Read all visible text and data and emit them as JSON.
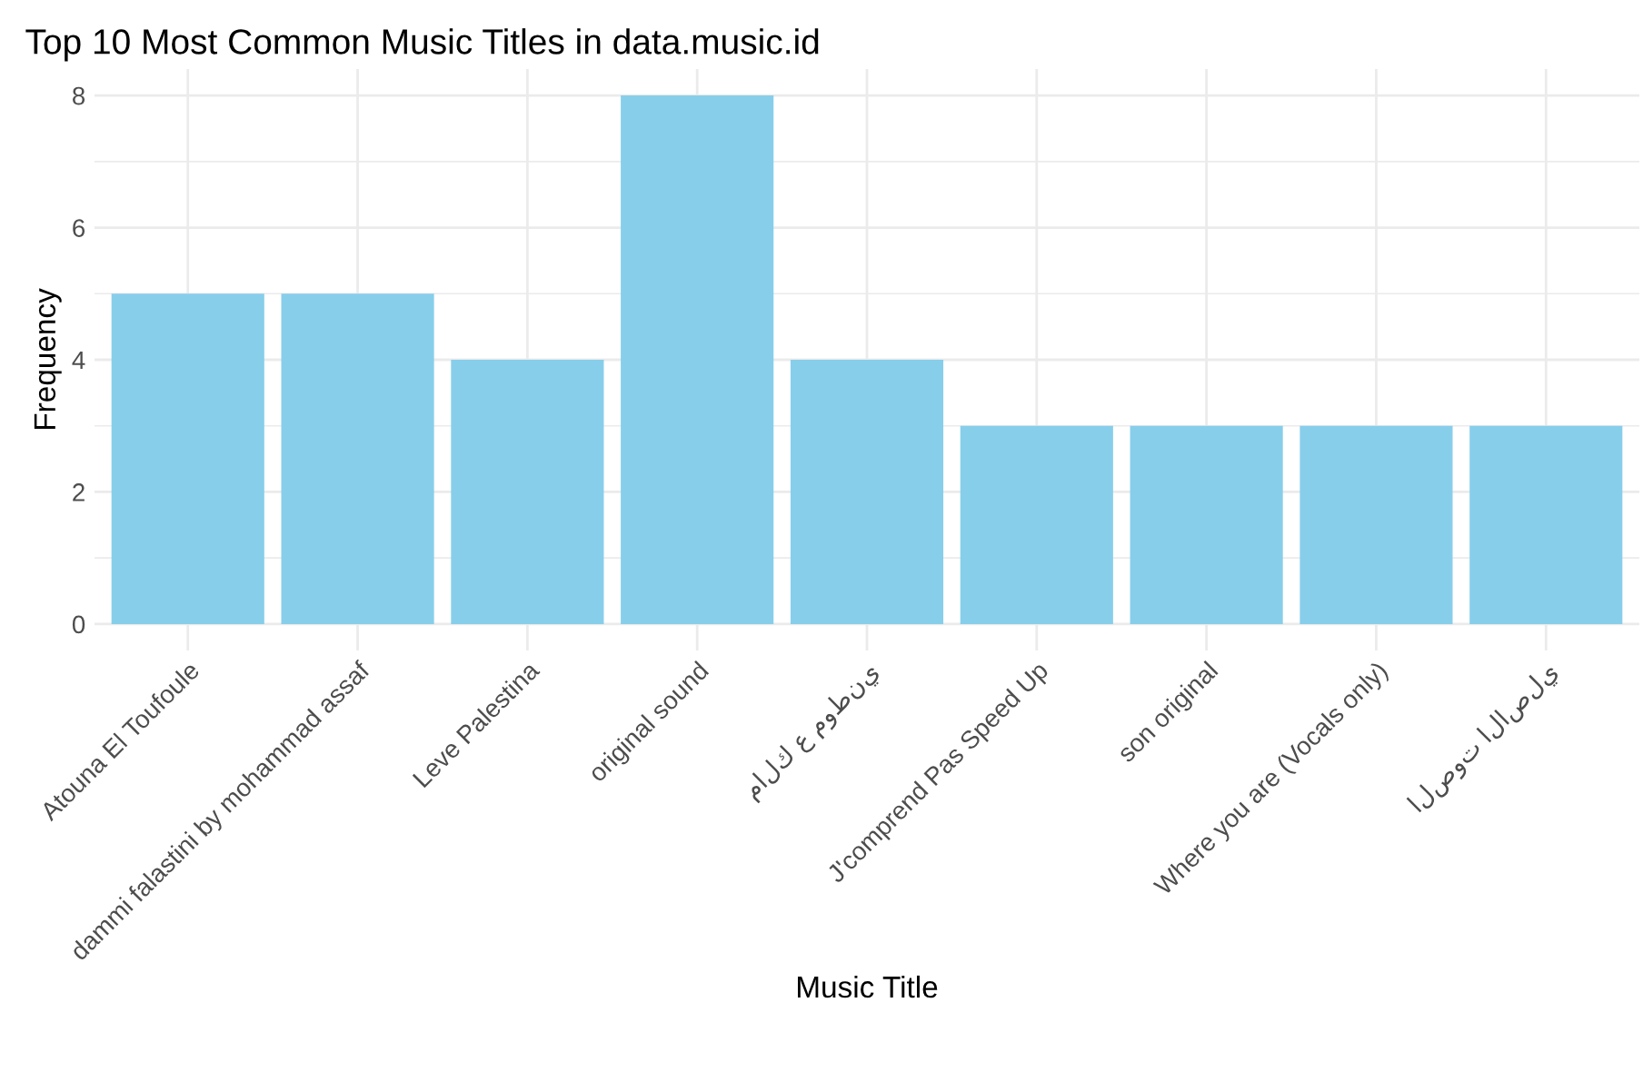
{
  "chart_data": {
    "type": "bar",
    "title": "Top 10 Most Common Music Titles in data.music.id",
    "xlabel": "Music Title",
    "ylabel": "Frequency",
    "categories": [
      "Atouna El Toufoule",
      "dammi falastini by mohammad assaf",
      "Leve Palestina",
      "original sound",
      "مالك ع موطني",
      "J'comprend Pas Speed Up",
      "son original",
      "Where you are (Vocals only)",
      "الصوت الاصلي"
    ],
    "values": [
      5,
      5,
      4,
      8,
      4,
      3,
      3,
      3,
      3
    ],
    "color": "#87ceeb",
    "ylim": [
      -0.4,
      8.4
    ],
    "yticks": [
      0,
      2,
      4,
      6,
      8
    ],
    "grid": true
  }
}
